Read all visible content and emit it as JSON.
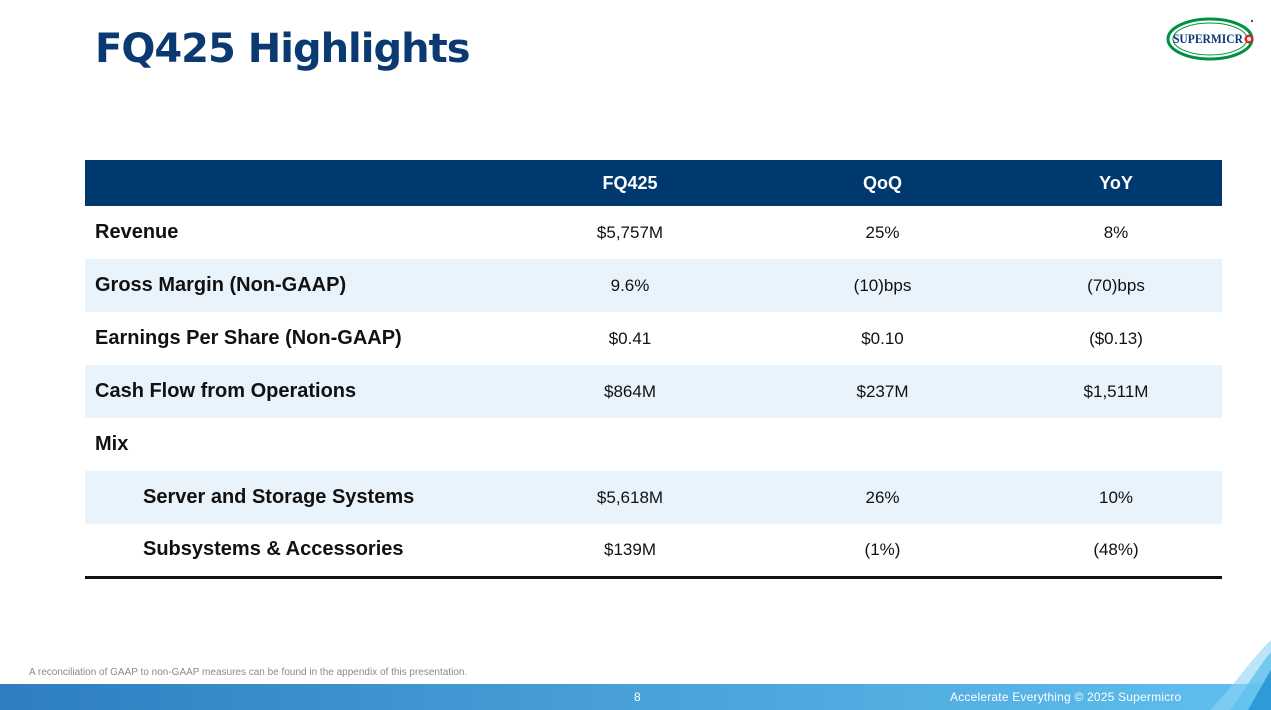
{
  "slide": {
    "title": "FQ425 Highlights",
    "logo_text": "SUPERMICR",
    "footnote": "A reconciliation of GAAP to non-GAAP measures can be found in the appendix of this presentation.",
    "page_number": "8",
    "tagline": "Accelerate Everything © 2025 Supermicro"
  },
  "table": {
    "headers": [
      "",
      "FQ425",
      "QoQ",
      "YoY"
    ],
    "rows": [
      {
        "label": "Revenue",
        "fq425": "$5,757M",
        "qoq": "25%",
        "yoy": "8%"
      },
      {
        "label": "Gross Margin (Non-GAAP)",
        "fq425": "9.6%",
        "qoq": "(10)bps",
        "yoy": "(70)bps"
      },
      {
        "label": "Earnings Per Share (Non-GAAP)",
        "fq425": "$0.41",
        "qoq": "$0.10",
        "yoy": "($0.13)"
      },
      {
        "label": "Cash Flow from Operations",
        "fq425": "$864M",
        "qoq": "$237M",
        "yoy": "$1,511M"
      },
      {
        "label": "Mix",
        "fq425": "",
        "qoq": "",
        "yoy": ""
      },
      {
        "label": "Server and Storage Systems",
        "fq425": "$5,618M",
        "qoq": "26%",
        "yoy": "10%"
      },
      {
        "label": "Subsystems & Accessories",
        "fq425": "$139M",
        "qoq": "(1%)",
        "yoy": "(48%)"
      }
    ]
  },
  "colors": {
    "title": "#0b3a73",
    "header_bg": "#003870",
    "row_shade": "#e9f3fb",
    "logo_green": "#00913f",
    "logo_red": "#d7262c"
  }
}
